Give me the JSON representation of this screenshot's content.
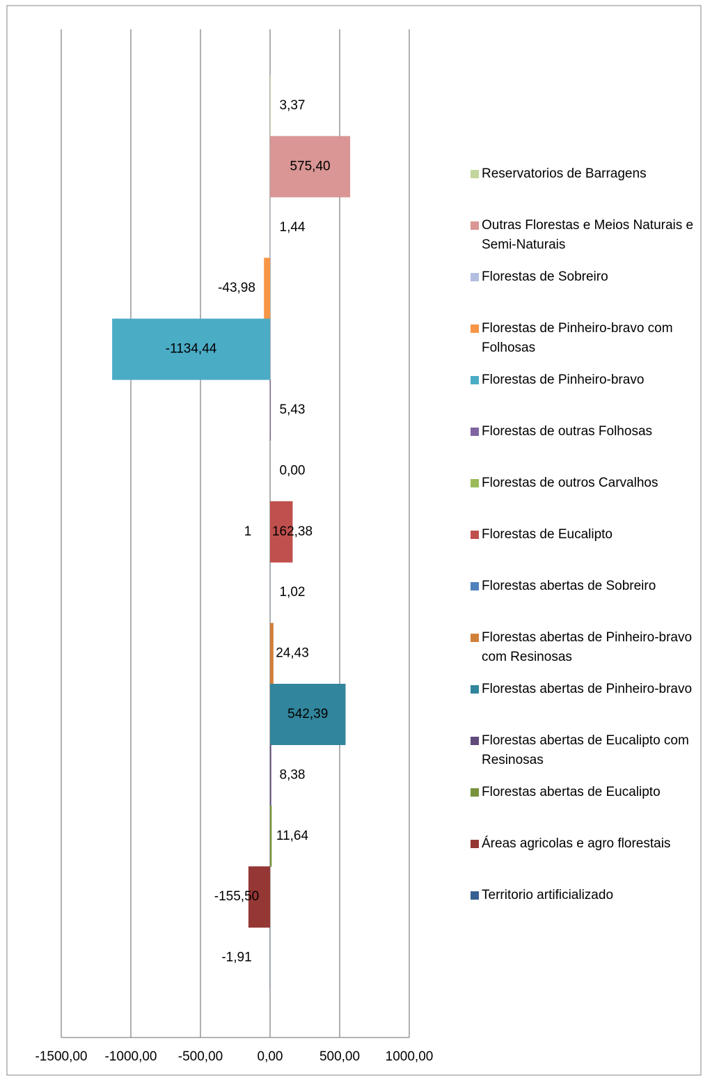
{
  "chart_data": {
    "type": "bar",
    "orientation": "horizontal",
    "grid": true,
    "legend": "right",
    "annotation": "1",
    "xlim": [
      -1500,
      1000
    ],
    "xticks": [
      {
        "value": -1500,
        "label": "-1500,00"
      },
      {
        "value": -1000,
        "label": "-1000,00"
      },
      {
        "value": -500,
        "label": "-500,00"
      },
      {
        "value": 0,
        "label": "0,00"
      },
      {
        "value": 500,
        "label": "500,00"
      },
      {
        "value": 1000,
        "label": "1000,00"
      }
    ],
    "series": [
      {
        "name": "Reservatorios de Barragens",
        "color": "#c3d69b",
        "values": [
          3.37
        ],
        "value_labels": [
          "3,37"
        ]
      },
      {
        "name": "Outras Florestas e Meios Naturais e Semi-Naturais",
        "color": "#d99694",
        "values": [
          575.4
        ],
        "value_labels": [
          "575,40"
        ]
      },
      {
        "name": "Florestas de Sobreiro",
        "color": "#b3bfe0",
        "values": [
          1.44
        ],
        "value_labels": [
          "1,44"
        ]
      },
      {
        "name": "Florestas de Pinheiro-bravo com Folhosas",
        "color": "#f79646",
        "values": [
          -43.98
        ],
        "value_labels": [
          "-43,98"
        ]
      },
      {
        "name": "Florestas de Pinheiro-bravo",
        "color": "#4bacc6",
        "values": [
          -1134.44
        ],
        "value_labels": [
          "-1134,44"
        ]
      },
      {
        "name": "Florestas de outras Folhosas",
        "color": "#8064a2",
        "values": [
          5.43
        ],
        "value_labels": [
          "5,43"
        ]
      },
      {
        "name": "Florestas de outros Carvalhos",
        "color": "#9bbb59",
        "values": [
          0
        ],
        "value_labels": [
          "0,00"
        ]
      },
      {
        "name": "Florestas de Eucalipto",
        "color": "#c0504d",
        "values": [
          162.38
        ],
        "value_labels": [
          "162,38"
        ]
      },
      {
        "name": "Florestas abertas de Sobreiro",
        "color": "#4f81bd",
        "values": [
          1.02
        ],
        "value_labels": [
          "1,02"
        ]
      },
      {
        "name": "Florestas abertas de Pinheiro-bravo com Resinosas",
        "color": "#d1803a",
        "values": [
          24.43
        ],
        "value_labels": [
          "24,43"
        ]
      },
      {
        "name": "Florestas abertas de Pinheiro-bravo",
        "color": "#31859c",
        "values": [
          542.39
        ],
        "value_labels": [
          "542,39"
        ]
      },
      {
        "name": "Florestas abertas de Eucalipto com Resinosas",
        "color": "#604a7b",
        "values": [
          8.38
        ],
        "value_labels": [
          "8,38"
        ]
      },
      {
        "name": "Florestas abertas de Eucalipto",
        "color": "#77933c",
        "values": [
          11.64
        ],
        "value_labels": [
          "11,64"
        ]
      },
      {
        "name": "Áreas agricolas e agro florestais",
        "color": "#953735",
        "values": [
          -155.5
        ],
        "value_labels": [
          "-155,50"
        ]
      },
      {
        "name": "Territorio artificializado",
        "color": "#376092",
        "values": [
          -1.91
        ],
        "value_labels": [
          "-1,91"
        ]
      }
    ]
  }
}
